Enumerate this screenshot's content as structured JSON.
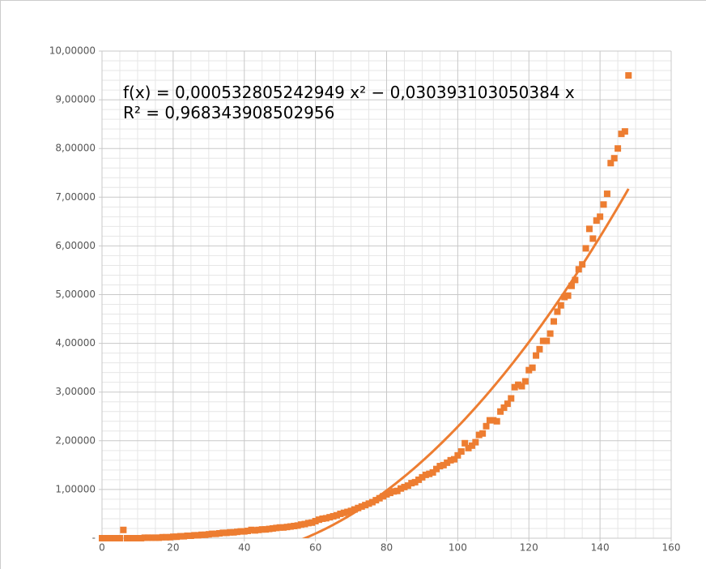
{
  "chart_data": {
    "type": "scatter",
    "series": [
      {
        "color": "#ed7d31",
        "x": [
          0,
          1,
          2,
          3,
          4,
          5,
          6,
          7,
          8,
          9,
          10,
          11,
          12,
          13,
          14,
          15,
          16,
          17,
          18,
          19,
          20,
          21,
          22,
          23,
          24,
          25,
          26,
          27,
          28,
          29,
          30,
          31,
          32,
          33,
          34,
          35,
          36,
          37,
          38,
          39,
          40,
          41,
          42,
          43,
          44,
          45,
          46,
          47,
          48,
          49,
          50,
          51,
          52,
          53,
          54,
          55,
          56,
          57,
          58,
          59,
          60,
          61,
          62,
          63,
          64,
          65,
          66,
          67,
          68,
          69,
          70,
          71,
          72,
          73,
          74,
          75,
          76,
          77,
          78,
          79,
          80,
          81,
          82,
          83,
          84,
          85,
          86,
          87,
          88,
          89,
          90,
          91,
          92,
          93,
          94,
          95,
          96,
          97,
          98,
          99,
          100,
          101,
          102,
          103,
          104,
          105,
          106,
          107,
          108,
          109,
          110,
          111,
          112,
          113,
          114,
          115,
          116,
          117,
          118,
          119,
          120,
          121,
          122,
          123,
          124,
          125,
          126,
          127,
          128,
          129,
          130,
          131,
          132,
          133,
          134,
          135,
          136,
          137,
          138,
          139,
          140,
          141,
          142,
          143,
          144,
          145,
          146,
          147,
          148
        ],
        "values": [
          0,
          0,
          0,
          0,
          0,
          0,
          0.17,
          0,
          0,
          0,
          0,
          0,
          0.01,
          0.01,
          0.01,
          0.01,
          0.01,
          0.02,
          0.02,
          0.02,
          0.03,
          0.03,
          0.04,
          0.04,
          0.05,
          0.05,
          0.06,
          0.06,
          0.07,
          0.07,
          0.08,
          0.09,
          0.09,
          0.1,
          0.11,
          0.11,
          0.12,
          0.12,
          0.13,
          0.14,
          0.14,
          0.15,
          0.17,
          0.16,
          0.17,
          0.18,
          0.18,
          0.19,
          0.2,
          0.21,
          0.22,
          0.22,
          0.23,
          0.24,
          0.25,
          0.26,
          0.28,
          0.29,
          0.31,
          0.32,
          0.35,
          0.38,
          0.4,
          0.41,
          0.43,
          0.45,
          0.47,
          0.5,
          0.52,
          0.54,
          0.56,
          0.59,
          0.62,
          0.65,
          0.68,
          0.71,
          0.74,
          0.78,
          0.82,
          0.86,
          0.9,
          0.93,
          0.96,
          0.97,
          1.02,
          1.05,
          1.08,
          1.13,
          1.15,
          1.2,
          1.25,
          1.3,
          1.32,
          1.35,
          1.42,
          1.48,
          1.5,
          1.55,
          1.6,
          1.62,
          1.7,
          1.78,
          1.95,
          1.85,
          1.9,
          1.97,
          2.12,
          2.15,
          2.3,
          2.42,
          2.42,
          2.4,
          2.6,
          2.68,
          2.76,
          2.87,
          3.1,
          3.15,
          3.12,
          3.22,
          3.45,
          3.5,
          3.75,
          3.88,
          4.05,
          4.05,
          4.2,
          4.45,
          4.65,
          4.78,
          4.95,
          4.98,
          5.18,
          5.3,
          5.52,
          5.62,
          5.95,
          6.35,
          6.15,
          6.52,
          6.6,
          6.85,
          7.07,
          7.7,
          7.8,
          8.0,
          8.3,
          8.35,
          9.5
        ]
      }
    ],
    "trendline": {
      "color": "#ed7d31",
      "coefficients": [
        0.000532805242949,
        -0.030393103050384,
        0
      ],
      "x_range": [
        0,
        148
      ],
      "equation": "f(x) = 0,000532805242949 x² − 0,030393103050384 x",
      "r_squared": "R² = 0,968343908502956"
    },
    "xlim": [
      0,
      160
    ],
    "xticks": [
      0,
      20,
      40,
      60,
      80,
      100,
      120,
      140,
      160
    ],
    "ylim": [
      0,
      10
    ],
    "yticks": [
      {
        "value": 0,
        "label": "-"
      },
      {
        "value": 1,
        "label": "1,00000"
      },
      {
        "value": 2,
        "label": "2,00000"
      },
      {
        "value": 3,
        "label": "3,00000"
      },
      {
        "value": 4,
        "label": "4,00000"
      },
      {
        "value": 5,
        "label": "5,00000"
      },
      {
        "value": 6,
        "label": "6,00000"
      },
      {
        "value": 7,
        "label": "7,00000"
      },
      {
        "value": 8,
        "label": "8,00000"
      },
      {
        "value": 9,
        "label": "9,00000"
      },
      {
        "value": 10,
        "label": "10,00000"
      }
    ],
    "grid": true,
    "minor_grid": {
      "x": 4,
      "y": 5
    }
  }
}
